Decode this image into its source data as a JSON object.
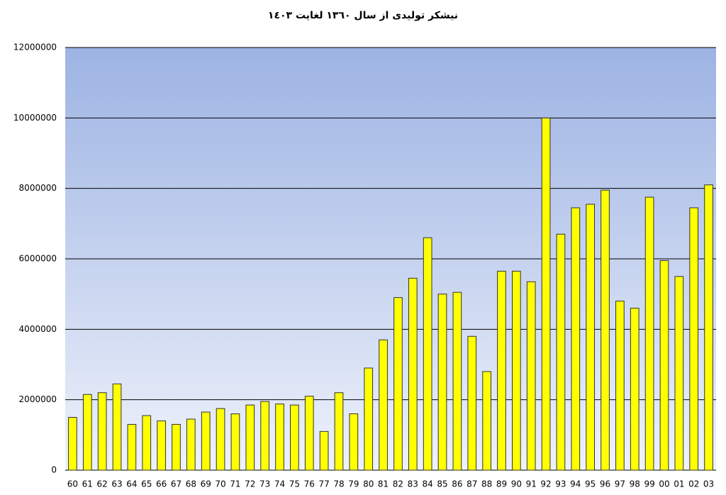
{
  "chart_data": {
    "type": "bar",
    "title": "نیشکر تولیدی از سال ١٣٦٠ لغایت ١٤٠٣",
    "categories": [
      "60",
      "61",
      "62",
      "63",
      "64",
      "65",
      "66",
      "67",
      "68",
      "69",
      "70",
      "71",
      "72",
      "73",
      "74",
      "75",
      "76",
      "77",
      "78",
      "79",
      "80",
      "81",
      "82",
      "83",
      "84",
      "85",
      "86",
      "87",
      "88",
      "89",
      "90",
      "91",
      "92",
      "93",
      "94",
      "95",
      "96",
      "97",
      "98",
      "99",
      "00",
      "01",
      "02",
      "03"
    ],
    "values": [
      1500000,
      2150000,
      2200000,
      2450000,
      1300000,
      1550000,
      1400000,
      1300000,
      1450000,
      1650000,
      1750000,
      1600000,
      1850000,
      1950000,
      1880000,
      1850000,
      2100000,
      1100000,
      2200000,
      1600000,
      2900000,
      3700000,
      4900000,
      5450000,
      6600000,
      5000000,
      5050000,
      3800000,
      2800000,
      5650000,
      5650000,
      5350000,
      10000000,
      6700000,
      7450000,
      7550000,
      7950000,
      4800000,
      4600000,
      7750000,
      5950000,
      5500000,
      7450000,
      8100000
    ],
    "color": "#ffff00",
    "ylim": [
      0,
      12000000
    ],
    "yticks": [
      0,
      2000000,
      4000000,
      6000000,
      8000000,
      10000000,
      12000000
    ],
    "grid": true
  }
}
